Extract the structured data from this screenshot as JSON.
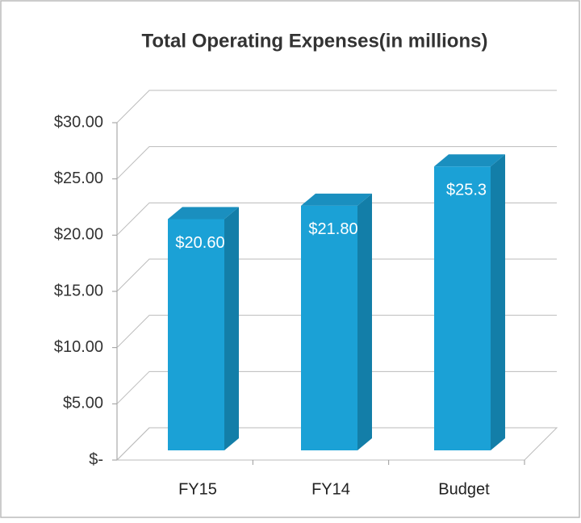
{
  "chart_data": {
    "type": "bar3d",
    "title": "Total Operating Expenses(in millions)",
    "categories": [
      "FY15",
      "FY14",
      "Budget"
    ],
    "values": [
      20.6,
      21.8,
      25.3
    ],
    "value_labels": [
      "$20.60",
      "$21.80",
      "$25.3"
    ],
    "color": "#1ba1d6",
    "ylim": [
      0,
      30
    ],
    "yticks": [
      {
        "value": 0,
        "label": "$-"
      },
      {
        "value": 5,
        "label": "$5.00"
      },
      {
        "value": 10,
        "label": "$10.00"
      },
      {
        "value": 15,
        "label": "$15.00"
      },
      {
        "value": 20,
        "label": "$20.00"
      },
      {
        "value": 25,
        "label": "$25.00"
      },
      {
        "value": 30,
        "label": "$30.00"
      }
    ],
    "grid": true
  }
}
